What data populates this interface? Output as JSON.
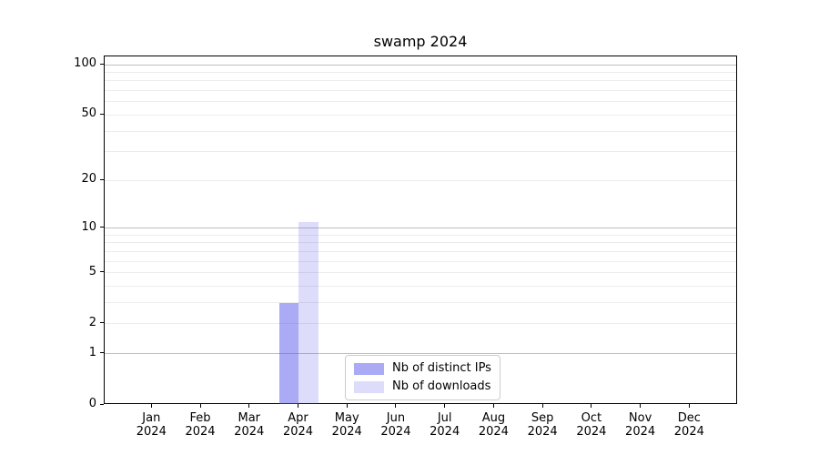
{
  "chart_data": {
    "type": "bar",
    "title": "swamp 2024",
    "categories": [
      "Jan",
      "Feb",
      "Mar",
      "Apr",
      "May",
      "Jun",
      "Jul",
      "Aug",
      "Sep",
      "Oct",
      "Nov",
      "Dec"
    ],
    "category_year": "2024",
    "series": [
      {
        "name": "Nb of distinct IPs",
        "color": "rgba(85,85,235,0.5)",
        "values": [
          0,
          0,
          0,
          3,
          0,
          0,
          0,
          0,
          0,
          0,
          0,
          0
        ]
      },
      {
        "name": "Nb of downloads",
        "color": "rgba(85,85,235,0.2)",
        "values": [
          0,
          0,
          0,
          11,
          0,
          0,
          0,
          0,
          0,
          0,
          0,
          0
        ]
      }
    ],
    "xlabel": "",
    "ylabel": "",
    "yscale": "log10(1+y)",
    "ylim": [
      0,
      112
    ],
    "yticks": [
      0,
      1,
      2,
      5,
      10,
      20,
      50,
      100
    ],
    "grid": {
      "minor_lines": [
        2,
        3,
        4,
        5,
        6,
        7,
        8,
        9,
        20,
        30,
        40,
        50,
        60,
        70,
        80,
        90
      ],
      "major_lines": [
        1,
        10,
        100
      ]
    },
    "legend_position": "lower center"
  },
  "colors": {
    "axis": "#000000",
    "minor_grid": "#ececec",
    "major_grid": "#bfbfbf",
    "legend_border": "#cccccc",
    "background": "#ffffff"
  }
}
